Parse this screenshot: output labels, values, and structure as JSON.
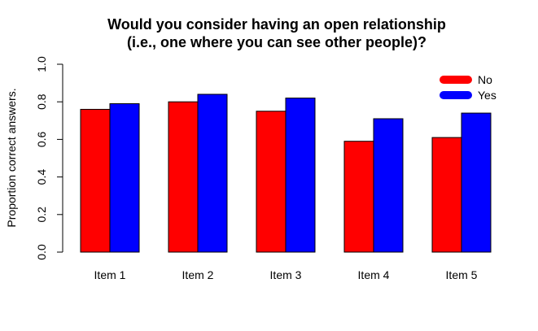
{
  "chart_data": {
    "type": "bar",
    "title": "Would you consider having an open relationship\n(i.e., one where you can see other people)?",
    "xlabel": "",
    "ylabel": "Proportion correct answers.",
    "ylim": [
      0,
      1
    ],
    "yticks": [
      "0.0",
      "0.2",
      "0.4",
      "0.6",
      "0.8",
      "1.0"
    ],
    "ytick_values": [
      0,
      0.2,
      0.4,
      0.6,
      0.8,
      1.0
    ],
    "grid": false,
    "legend_position": "top-right",
    "categories": [
      "Item 1",
      "Item 2",
      "Item 3",
      "Item 4",
      "Item 5"
    ],
    "series": [
      {
        "name": "No",
        "color": "#ff0000",
        "values": [
          0.76,
          0.8,
          0.75,
          0.59,
          0.61
        ]
      },
      {
        "name": "Yes",
        "color": "#0000ff",
        "values": [
          0.79,
          0.84,
          0.82,
          0.71,
          0.74
        ]
      }
    ]
  }
}
